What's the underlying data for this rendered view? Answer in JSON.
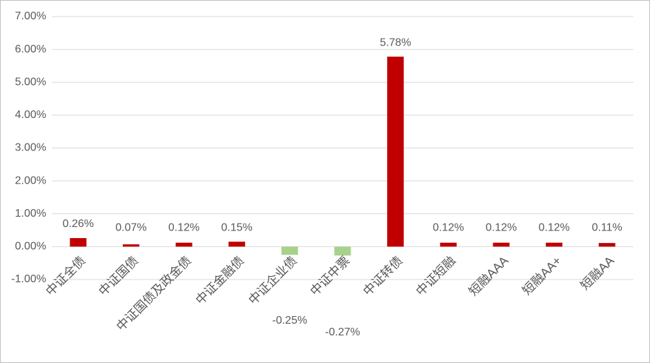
{
  "chart_data": {
    "type": "bar",
    "categories": [
      "中证全债",
      "中证国债",
      "中证国债及政金债",
      "中证金融债",
      "中证企业债",
      "中证中票",
      "中证转债",
      "中证短融",
      "短融AAA",
      "短融AA+",
      "短融AA"
    ],
    "values": [
      0.26,
      0.07,
      0.12,
      0.15,
      -0.25,
      -0.27,
      5.78,
      0.12,
      0.12,
      0.12,
      0.11
    ],
    "value_labels": [
      "0.26%",
      "0.07%",
      "0.12%",
      "0.15%",
      "-0.25%",
      "-0.27%",
      "5.78%",
      "0.12%",
      "0.12%",
      "0.12%",
      "0.11%"
    ],
    "colors": [
      "#c00000",
      "#c00000",
      "#c00000",
      "#c00000",
      "#a9d18e",
      "#a9d18e",
      "#c00000",
      "#c00000",
      "#c00000",
      "#c00000",
      "#c00000"
    ],
    "ylim": [
      -1,
      7
    ],
    "yticks": [
      {
        "value": -1,
        "label": "-1.00%"
      },
      {
        "value": 0,
        "label": "0.00%"
      },
      {
        "value": 1,
        "label": "1.00%"
      },
      {
        "value": 2,
        "label": "2.00%"
      },
      {
        "value": 3,
        "label": "3.00%"
      },
      {
        "value": 4,
        "label": "4.00%"
      },
      {
        "value": 5,
        "label": "5.00%"
      },
      {
        "value": 6,
        "label": "6.00%"
      },
      {
        "value": 7,
        "label": "7.00%"
      }
    ],
    "grid": true
  }
}
